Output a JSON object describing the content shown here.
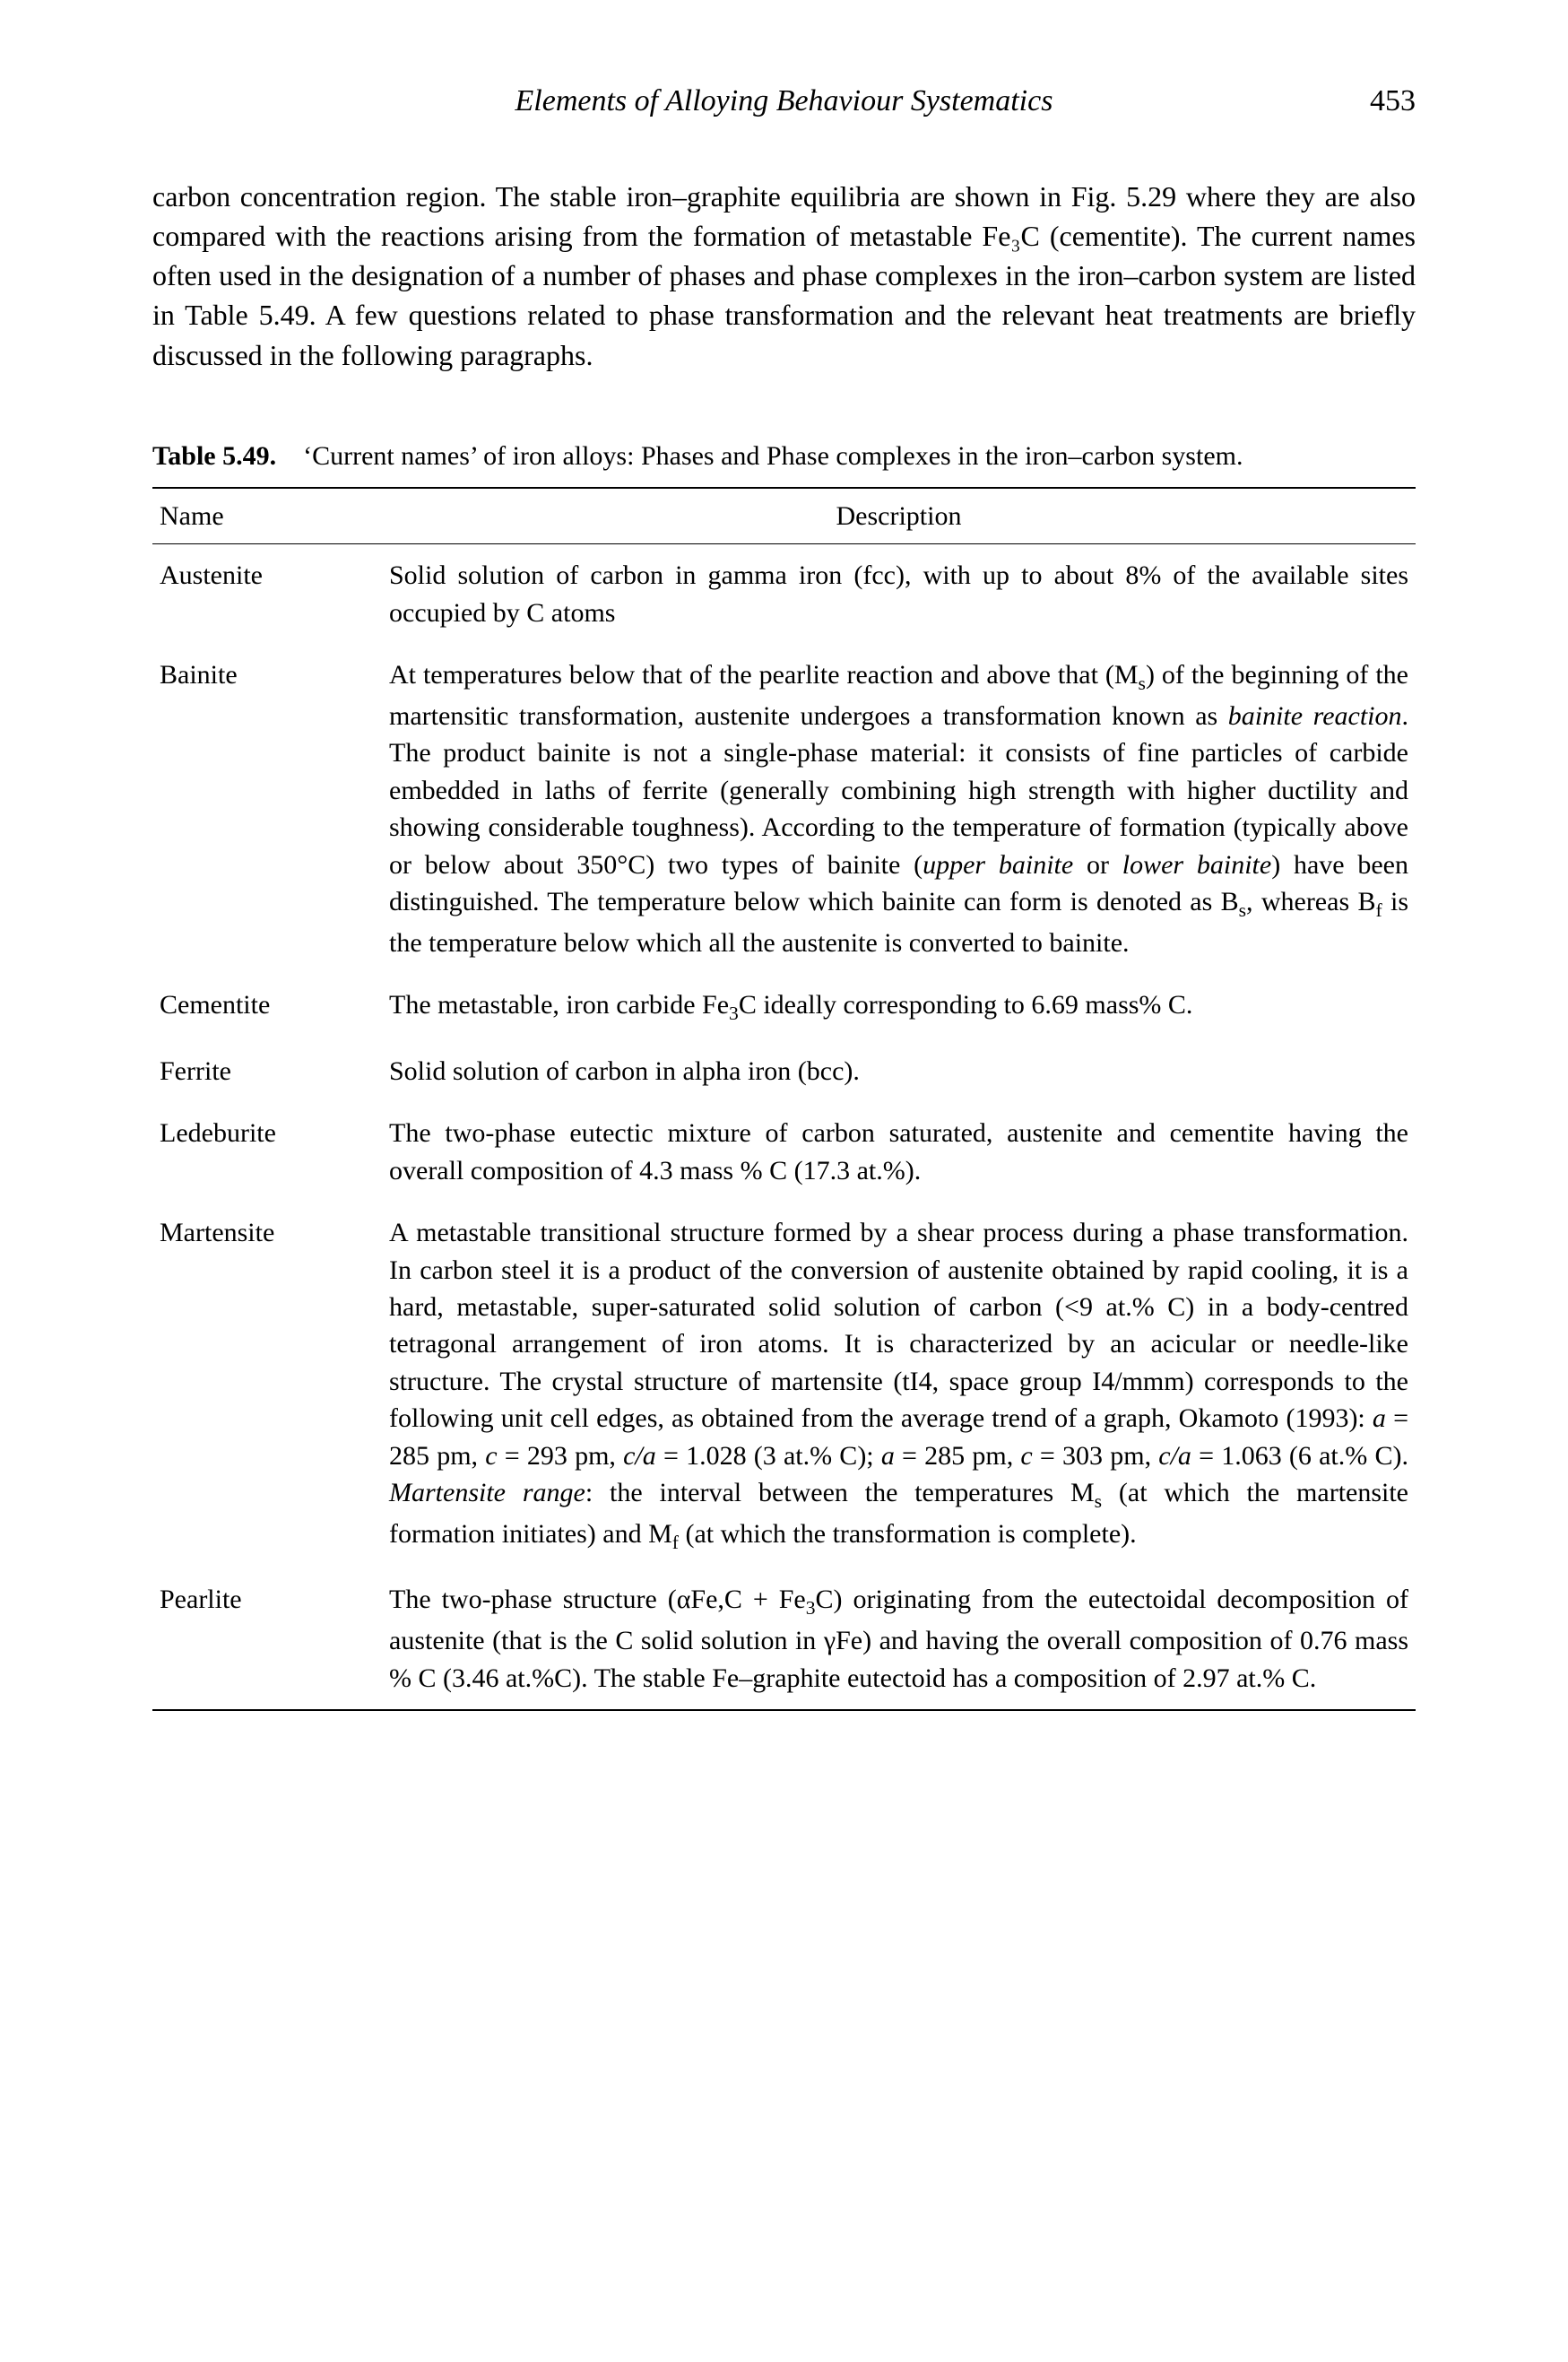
{
  "header": {
    "running_title": "Elements of Alloying Behaviour Systematics",
    "page_number": "453"
  },
  "body_paragraph": "carbon concentration region. The stable iron–graphite equilibria are shown in Fig. 5.29 where they are also compared with the reactions arising from the formation of metastable Fe₃C (cementite). The current names often used in the designation of a number of phases and phase complexes in the iron–carbon system are listed in Table 5.49. A few questions related to phase transformation and the relevant heat treatments are briefly discussed in the following paragraphs.",
  "table": {
    "label": "Table 5.49.",
    "caption_rest": "‘Current names’ of iron alloys: Phases and Phase complexes in the iron–carbon system.",
    "columns": {
      "name": "Name",
      "description": "Description"
    },
    "rows": [
      {
        "name": "Austenite",
        "desc": "Solid solution of carbon in gamma iron (fcc), with up to about 8% of the available sites occupied by C atoms"
      },
      {
        "name": "Bainite",
        "desc": "At temperatures below that of the pearlite reaction and above that (M<sub>s</sub>) of the beginning of the martensitic transformation, austenite undergoes a transformation known as <span class=\"ital\">bainite reaction</span>. The product bainite is not a single-phase material: it consists of fine particles of carbide embedded in laths of ferrite (generally combining high strength with higher ductility and showing considerable toughness). According to the temperature of formation (typically above or below about 350°C) two types of bainite (<span class=\"ital\">upper bainite</span> or <span class=\"ital\">lower bainite</span>) have been distinguished. The temperature below which bainite can form is denoted as B<sub>s</sub>, whereas B<sub>f</sub> is the temperature below which all the austenite is converted to bainite."
      },
      {
        "name": "Cementite",
        "desc": "The metastable, iron carbide Fe<sub>3</sub>C ideally corresponding to 6.69 mass% C."
      },
      {
        "name": "Ferrite",
        "desc": "Solid solution of carbon in alpha iron (bcc)."
      },
      {
        "name": "Ledeburite",
        "desc": "The two-phase eutectic mixture of carbon saturated, austenite and cementite having the overall composition of 4.3 mass % C (17.3 at.%)."
      },
      {
        "name": "Martensite",
        "desc": "A metastable transitional structure formed by a shear process during a phase transformation. In carbon steel it is a product of the conversion of austenite obtained by rapid cooling, it is a hard, metastable, super-saturated solid solution of carbon (&lt;9 at.% C) in a body-centred tetragonal arrangement of iron atoms. It is characterized by an acicular or needle-like structure. The crystal structure of martensite (tI4, space group I4/mmm) corresponds to the following unit cell edges, as obtained from the average trend of a graph, Okamoto (1993): <span class=\"ital\">a</span> = 285 pm, <span class=\"ital\">c</span> = 293 pm, <span class=\"ital\">c/a</span> = 1.028 (3 at.% C); <span class=\"ital\">a</span> = 285 pm, <span class=\"ital\">c</span> = 303 pm, <span class=\"ital\">c/a</span> = 1.063 (6 at.% C). <span class=\"ital\">Martensite range</span>: the interval between the temperatures M<sub>s</sub> (at which the martensite formation initiates) and M<sub>f</sub> (at which the transformation is complete)."
      },
      {
        "name": "Pearlite",
        "desc": "The two-phase structure (αFe,C + Fe<sub>3</sub>C) originating from the eutectoidal decomposition of austenite (that is the C solid solution in γFe) and having the overall composition of 0.76 mass % C (3.46 at.%C). The stable Fe–graphite eutectoid has a composition of 2.97 at.% C."
      }
    ]
  }
}
